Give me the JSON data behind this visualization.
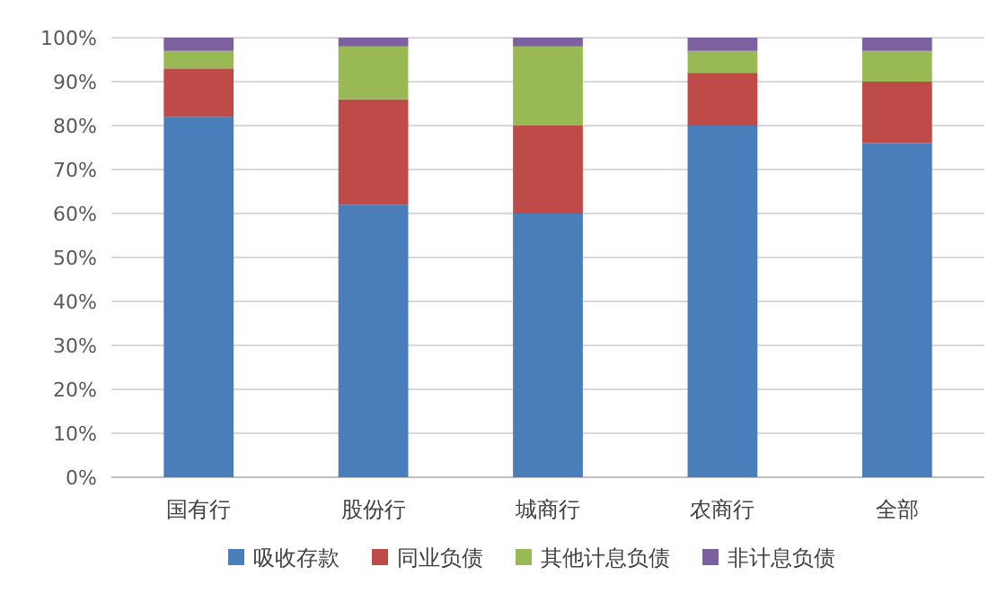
{
  "chart_data": {
    "type": "bar",
    "stacked": true,
    "categories": [
      "国有行",
      "股份行",
      "城商行",
      "农商行",
      "全部"
    ],
    "series": [
      {
        "name": "吸收存款",
        "color": "#4a7ebb",
        "values": [
          82,
          62,
          60,
          80,
          76
        ]
      },
      {
        "name": "同业负债",
        "color": "#be4b48",
        "values": [
          11,
          24,
          20,
          12,
          14
        ]
      },
      {
        "name": "其他计息负债",
        "color": "#98b954",
        "values": [
          4,
          12,
          18,
          5,
          7
        ]
      },
      {
        "name": "非计息负债",
        "color": "#7d60a0",
        "values": [
          3,
          2,
          2,
          3,
          3
        ]
      }
    ],
    "ylim": [
      0,
      100
    ],
    "yticks": [
      {
        "value": 0,
        "label": "0%"
      },
      {
        "value": 10,
        "label": "10%"
      },
      {
        "value": 20,
        "label": "20%"
      },
      {
        "value": 30,
        "label": "30%"
      },
      {
        "value": 40,
        "label": "40%"
      },
      {
        "value": 50,
        "label": "50%"
      },
      {
        "value": 60,
        "label": "60%"
      },
      {
        "value": 70,
        "label": "70%"
      },
      {
        "value": 80,
        "label": "80%"
      },
      {
        "value": 90,
        "label": "90%"
      },
      {
        "value": 100,
        "label": "100%"
      }
    ],
    "grid": "y",
    "legend": "bottom"
  }
}
